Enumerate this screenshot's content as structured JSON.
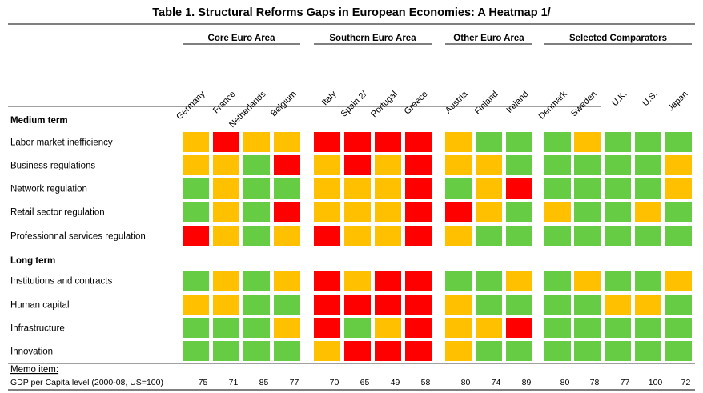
{
  "title": "Table 1. Structural Reforms Gaps in European Economies:  A Heatmap 1/",
  "colors": {
    "green": "#66cc44",
    "amber": "#ffc000",
    "red": "#ff0000"
  },
  "chart_data": {
    "type": "heatmap",
    "levels": [
      "green",
      "amber",
      "red"
    ],
    "groups": [
      {
        "label": "Core Euro Area",
        "countries": [
          "Germany",
          "France",
          "Netherlands",
          "Belgium"
        ]
      },
      {
        "label": "Southern Euro Area",
        "countries": [
          "Italy",
          "Spain 2/",
          "Portugal",
          "Greece"
        ]
      },
      {
        "label": "Other Euro Area",
        "countries": [
          "Austria",
          "Finland",
          "Ireland"
        ]
      },
      {
        "label": "Selected Comparators",
        "countries": [
          "Denmark",
          "Sweden",
          "U.K.",
          "U.S.",
          "Japan"
        ]
      }
    ],
    "sections": [
      {
        "label": "Medium term",
        "rows": [
          {
            "label": "Labor market inefficiency",
            "values": [
              "amber",
              "red",
              "amber",
              "amber",
              "red",
              "red",
              "red",
              "red",
              "amber",
              "green",
              "green",
              "green",
              "amber",
              "green",
              "green",
              "green"
            ]
          },
          {
            "label": "Business regulations",
            "values": [
              "amber",
              "amber",
              "green",
              "red",
              "amber",
              "red",
              "amber",
              "red",
              "amber",
              "amber",
              "green",
              "green",
              "green",
              "green",
              "green",
              "amber"
            ]
          },
          {
            "label": "Network regulation",
            "values": [
              "green",
              "amber",
              "green",
              "green",
              "amber",
              "amber",
              "amber",
              "red",
              "green",
              "amber",
              "red",
              "green",
              "green",
              "green",
              "green",
              "amber"
            ]
          },
          {
            "label": "Retail sector regulation",
            "values": [
              "green",
              "amber",
              "green",
              "red",
              "amber",
              "amber",
              "amber",
              "red",
              "red",
              "amber",
              "green",
              "amber",
              "green",
              "green",
              "amber",
              "green"
            ]
          },
          {
            "label": "Professionnal services regulation",
            "values": [
              "red",
              "amber",
              "green",
              "amber",
              "red",
              "amber",
              "amber",
              "red",
              "amber",
              "green",
              "green",
              "green",
              "green",
              "green",
              "green",
              "green"
            ]
          }
        ]
      },
      {
        "label": "Long term",
        "rows": [
          {
            "label": "Institutions and contracts",
            "values": [
              "green",
              "amber",
              "green",
              "amber",
              "red",
              "amber",
              "red",
              "red",
              "green",
              "green",
              "amber",
              "green",
              "amber",
              "green",
              "green",
              "amber"
            ]
          },
          {
            "label": "Human capital",
            "values": [
              "amber",
              "amber",
              "green",
              "green",
              "red",
              "red",
              "red",
              "red",
              "amber",
              "green",
              "green",
              "green",
              "green",
              "amber",
              "amber",
              "green"
            ]
          },
          {
            "label": "Infrastructure",
            "values": [
              "green",
              "green",
              "green",
              "amber",
              "red",
              "green",
              "amber",
              "red",
              "amber",
              "amber",
              "red",
              "green",
              "green",
              "green",
              "green",
              "green"
            ]
          },
          {
            "label": "Innovation",
            "values": [
              "green",
              "green",
              "green",
              "green",
              "amber",
              "red",
              "red",
              "red",
              "amber",
              "green",
              "green",
              "green",
              "green",
              "green",
              "green",
              "green"
            ]
          }
        ]
      }
    ],
    "memo": {
      "label": "Memo item:",
      "row_label": "GDP per Capita level (2000-08, US=100)",
      "values": [
        75,
        71,
        85,
        77,
        70,
        65,
        49,
        58,
        80,
        74,
        89,
        80,
        78,
        77,
        100,
        72
      ]
    }
  }
}
